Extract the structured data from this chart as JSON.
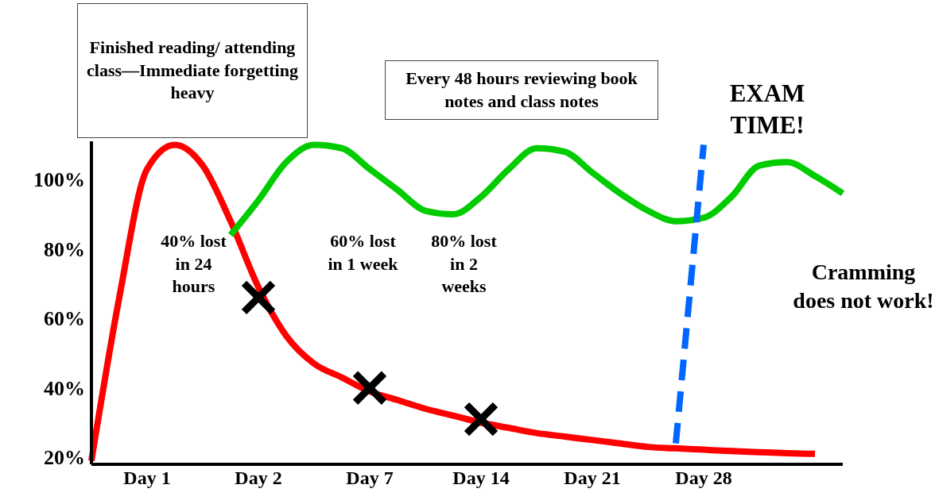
{
  "chart_data": {
    "type": "line",
    "categories": [
      null,
      null,
      "Day 1",
      null,
      null,
      null,
      "Day 2",
      null,
      null,
      null,
      "Day 7",
      null,
      null,
      null,
      "Day 14",
      null,
      null,
      null,
      "Day 21",
      null,
      null,
      null,
      "Day 28",
      null,
      null,
      null,
      null,
      null
    ],
    "ylim": [
      18,
      111
    ],
    "yticks": [
      {
        "value": 20,
        "label": "20%"
      },
      {
        "value": 40,
        "label": "40%"
      },
      {
        "value": 60,
        "label": "60%"
      },
      {
        "value": 80,
        "label": "80%"
      },
      {
        "value": 100,
        "label": "100%"
      }
    ],
    "grid": false,
    "legend": false,
    "series": [
      {
        "color": "#ff0000",
        "line_style": "solid",
        "marker": "none",
        "values": [
          19,
          66,
          103,
          110,
          104,
          88,
          69,
          55,
          47,
          43,
          39,
          36.5,
          34,
          32,
          30,
          28.5,
          27,
          26,
          25,
          24,
          23,
          22.6,
          22.2,
          21.8,
          21.5,
          21.2,
          21,
          null
        ]
      },
      {
        "color": "#00cc00",
        "line_style": "solid",
        "marker": "none",
        "values": [
          null,
          null,
          null,
          null,
          null,
          84,
          94,
          105,
          110,
          109,
          103,
          97,
          91,
          90,
          95,
          103,
          109,
          108,
          102,
          96,
          91,
          88,
          89,
          95,
          104,
          105,
          101,
          96
        ]
      },
      {
        "color": "#0066ff",
        "line_style": "dashed",
        "marker": "none",
        "values": [
          null,
          null,
          null,
          null,
          null,
          null,
          null,
          null,
          null,
          null,
          null,
          null,
          null,
          null,
          null,
          null,
          null,
          null,
          null,
          null,
          null,
          24,
          110,
          null,
          null,
          null,
          null,
          null
        ]
      },
      {
        "type": "scatter",
        "color": "#000000",
        "marker": "cross",
        "values": [
          null,
          null,
          null,
          null,
          null,
          null,
          66,
          null,
          null,
          null,
          40,
          null,
          null,
          null,
          31,
          null,
          null,
          null,
          null,
          null,
          null,
          null,
          null,
          null,
          null,
          null,
          null,
          null
        ]
      }
    ],
    "annotations": [
      "Finished reading/ attending class—Immediate forgetting heavy",
      "Every 48 hours reviewing book notes and class notes",
      "EXAM TIME!",
      "40% lost in 24 hours",
      "60% lost in 1 week",
      "80% lost in 2 weeks",
      "Cramming does not work!"
    ]
  }
}
